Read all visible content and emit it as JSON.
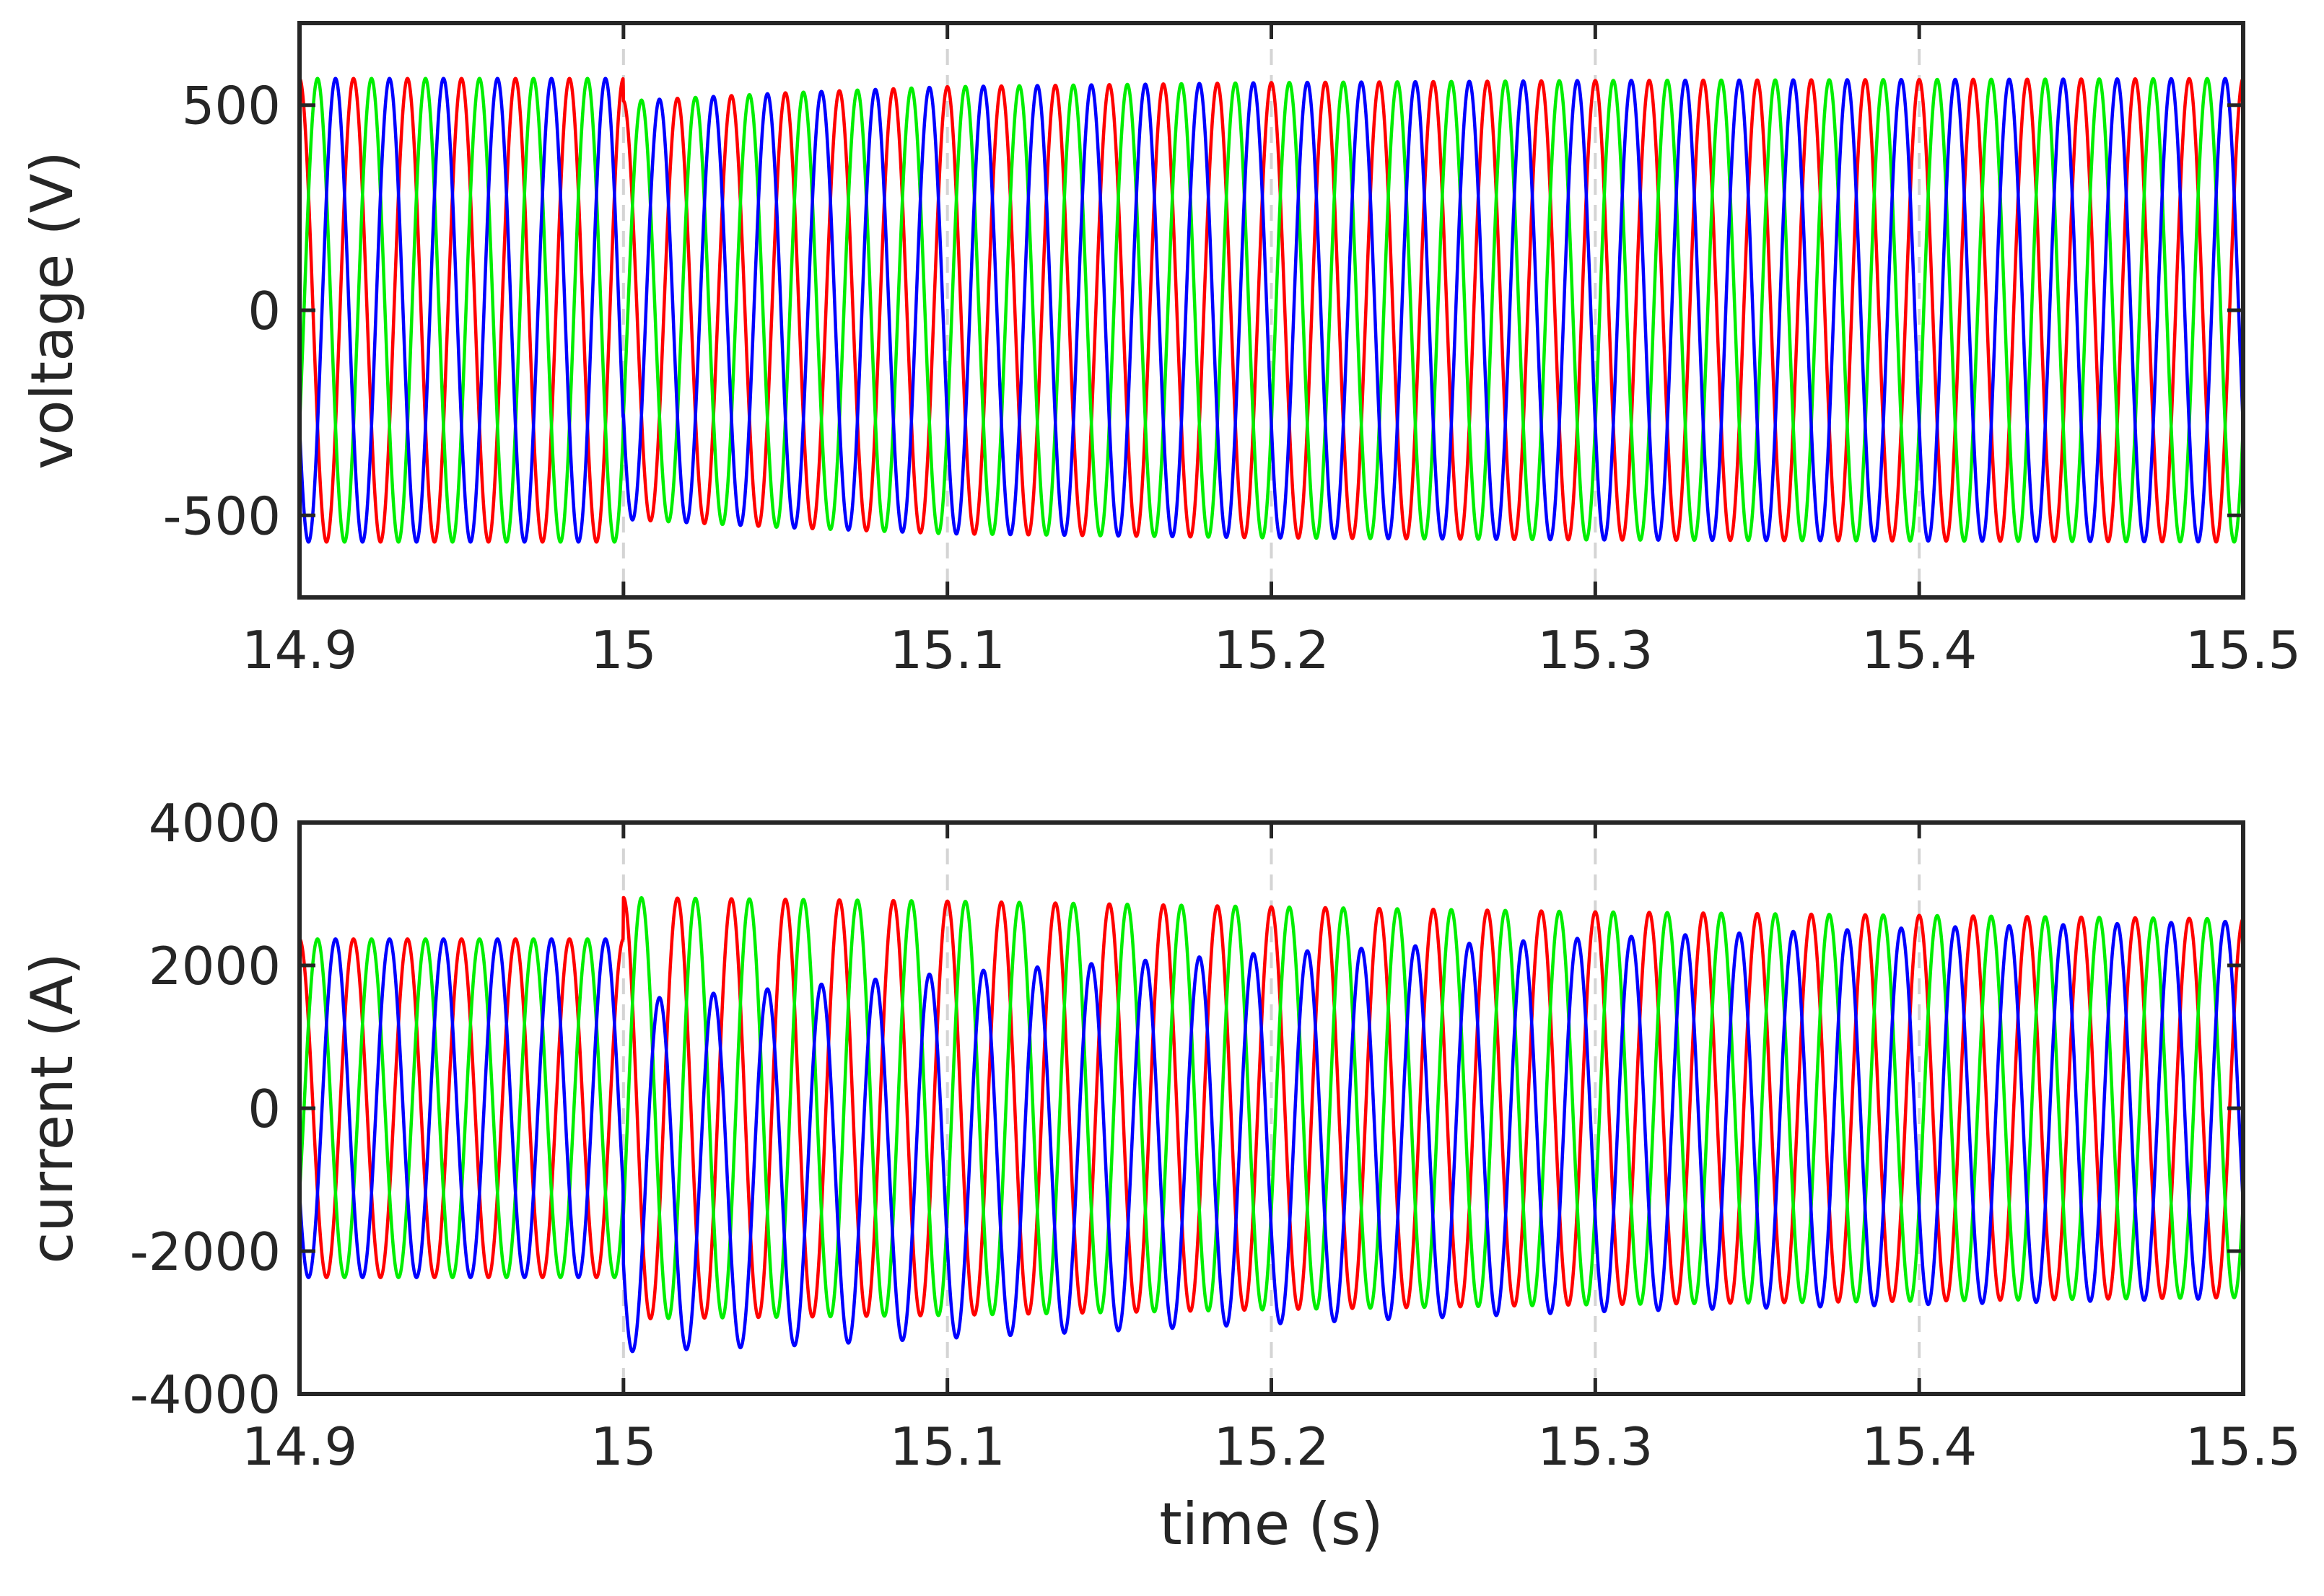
{
  "chart_data": [
    {
      "type": "line",
      "ylabel": "voltage (V)",
      "xlabel": "",
      "xlim": [
        14.9,
        15.5
      ],
      "ylim": [
        -700,
        700
      ],
      "xticks": [
        14.9,
        15.0,
        15.1,
        15.2,
        15.3,
        15.4,
        15.5
      ],
      "xtick_labels": [
        "14.9",
        "15",
        "15.1",
        "15.2",
        "15.3",
        "15.4",
        "15.5"
      ],
      "yticks": [
        -500,
        0,
        500
      ],
      "ytick_labels": [
        "-500",
        "0",
        "500"
      ],
      "grid": {
        "x": true,
        "y": false
      },
      "frequency_hz": 60,
      "series": [
        {
          "phase_deg": 90,
          "color": "#ff0000",
          "amplitude": [
            [
              14.9,
              565
            ],
            [
              14.9999,
              565
            ],
            [
              15.0,
              510
            ],
            [
              15.05,
              530
            ],
            [
              15.1,
              545
            ],
            [
              15.2,
              555
            ],
            [
              15.3,
              560
            ],
            [
              15.5,
              565
            ]
          ]
        },
        {
          "phase_deg": -30,
          "color": "#00ee00",
          "amplitude": [
            [
              14.9,
              565
            ],
            [
              14.9999,
              565
            ],
            [
              15.0,
              510
            ],
            [
              15.05,
              530
            ],
            [
              15.1,
              545
            ],
            [
              15.2,
              555
            ],
            [
              15.3,
              560
            ],
            [
              15.5,
              565
            ]
          ]
        },
        {
          "phase_deg": 210,
          "color": "#0000ff",
          "amplitude": [
            [
              14.9,
              565
            ],
            [
              14.9999,
              565
            ],
            [
              15.0,
              510
            ],
            [
              15.05,
              530
            ],
            [
              15.1,
              545
            ],
            [
              15.2,
              555
            ],
            [
              15.3,
              560
            ],
            [
              15.5,
              565
            ]
          ]
        }
      ]
    },
    {
      "type": "line",
      "ylabel": "current (A)",
      "xlabel": "time (s)",
      "xlim": [
        14.9,
        15.5
      ],
      "ylim": [
        -4000,
        4000
      ],
      "xticks": [
        14.9,
        15.0,
        15.1,
        15.2,
        15.3,
        15.4,
        15.5
      ],
      "xtick_labels": [
        "14.9",
        "15",
        "15.1",
        "15.2",
        "15.3",
        "15.4",
        "15.5"
      ],
      "yticks": [
        -4000,
        -2000,
        0,
        2000,
        4000
      ],
      "ytick_labels": [
        "-4000",
        "-2000",
        "0",
        "2000",
        "4000"
      ],
      "grid": {
        "x": true,
        "y": false
      },
      "frequency_hz": 60,
      "series": [
        {
          "phase_deg": 90,
          "color": "#ff0000",
          "amplitude": [
            [
              14.9,
              2370
            ],
            [
              14.9999,
              2370
            ],
            [
              15.0,
              2950
            ],
            [
              15.1,
              2900
            ],
            [
              15.2,
              2820
            ],
            [
              15.3,
              2750
            ],
            [
              15.5,
              2650
            ]
          ],
          "offset": [
            [
              14.9,
              0
            ],
            [
              15.5,
              0
            ]
          ]
        },
        {
          "phase_deg": -30,
          "color": "#00ee00",
          "amplitude": [
            [
              14.9,
              2370
            ],
            [
              14.9999,
              2370
            ],
            [
              15.0,
              2950
            ],
            [
              15.1,
              2900
            ],
            [
              15.2,
              2820
            ],
            [
              15.3,
              2750
            ],
            [
              15.5,
              2650
            ]
          ],
          "offset": [
            [
              14.9,
              0
            ],
            [
              15.5,
              0
            ]
          ]
        },
        {
          "phase_deg": 210,
          "color": "#0000ff",
          "amplitude": [
            [
              14.9,
              2370
            ],
            [
              14.9999,
              2370
            ],
            [
              15.0,
              2460
            ],
            [
              15.1,
              2560
            ],
            [
              15.2,
              2600
            ],
            [
              15.3,
              2620
            ],
            [
              15.4,
              2640
            ],
            [
              15.5,
              2640
            ]
          ],
          "offset": [
            [
              14.9,
              0
            ],
            [
              14.9999,
              0
            ],
            [
              15.0,
              -950
            ],
            [
              15.05,
              -820
            ],
            [
              15.1,
              -660
            ],
            [
              15.2,
              -420
            ],
            [
              15.3,
              -230
            ],
            [
              15.4,
              -110
            ],
            [
              15.5,
              -20
            ]
          ]
        }
      ]
    }
  ]
}
